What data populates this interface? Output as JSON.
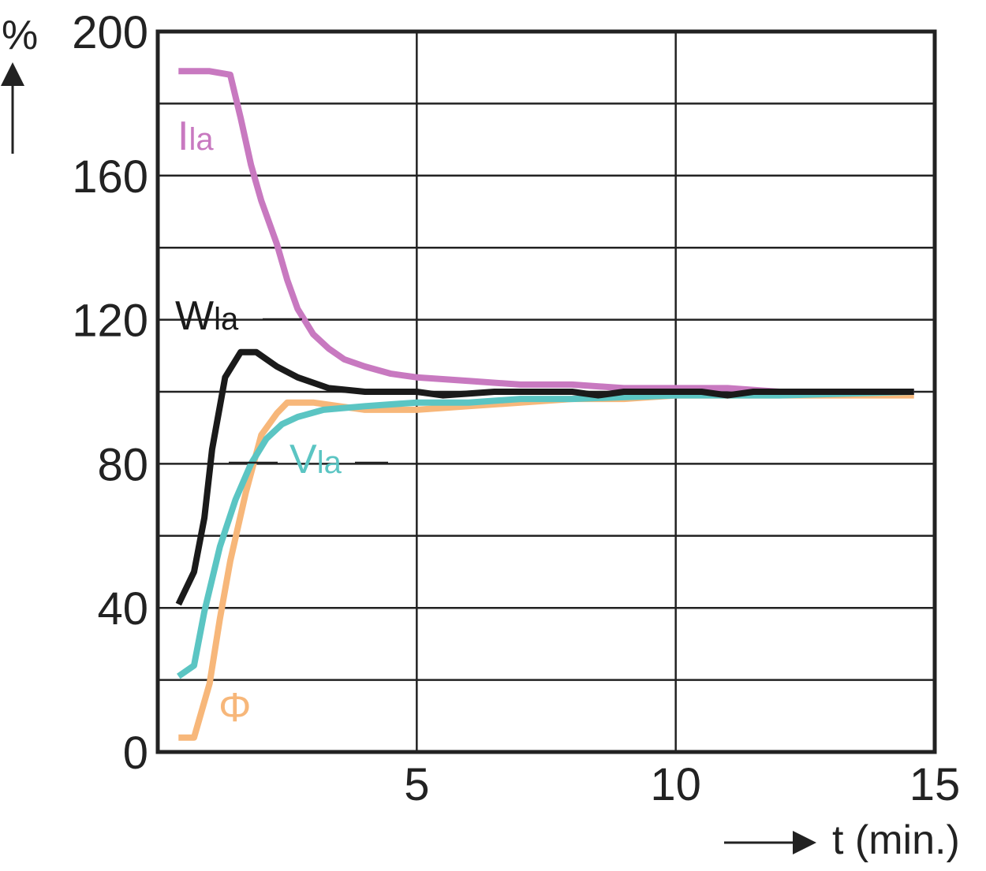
{
  "chart_data": {
    "type": "line",
    "title": "",
    "xlabel": "t (min.)",
    "ylabel": "%",
    "xlim": [
      0,
      15
    ],
    "ylim": [
      0,
      200
    ],
    "x_ticks": [
      5,
      10,
      15
    ],
    "y_ticks": [
      0,
      40,
      80,
      120,
      160,
      200
    ],
    "grid": true,
    "series": [
      {
        "name": "Ila",
        "label_main": "I",
        "label_sub": "la",
        "color": "#c879c0",
        "points": [
          [
            0.4,
            189
          ],
          [
            1.0,
            189
          ],
          [
            1.4,
            188
          ],
          [
            1.6,
            176
          ],
          [
            1.8,
            163
          ],
          [
            2.0,
            153
          ],
          [
            2.3,
            141
          ],
          [
            2.5,
            131
          ],
          [
            2.7,
            123
          ],
          [
            3.0,
            116
          ],
          [
            3.3,
            112
          ],
          [
            3.6,
            109
          ],
          [
            4.0,
            107
          ],
          [
            4.5,
            105
          ],
          [
            5.0,
            104
          ],
          [
            6.0,
            103
          ],
          [
            7.0,
            102
          ],
          [
            8.0,
            102
          ],
          [
            9.0,
            101
          ],
          [
            10.0,
            101
          ],
          [
            11.0,
            101
          ],
          [
            12.0,
            100
          ],
          [
            13.0,
            100
          ],
          [
            14.6,
            100
          ]
        ]
      },
      {
        "name": "Wla",
        "label_main": "W",
        "label_sub": "la",
        "color": "#1a1a1a",
        "points": [
          [
            0.4,
            41
          ],
          [
            0.7,
            50
          ],
          [
            0.9,
            65
          ],
          [
            1.05,
            84
          ],
          [
            1.3,
            104
          ],
          [
            1.6,
            111
          ],
          [
            1.9,
            111
          ],
          [
            2.3,
            107
          ],
          [
            2.7,
            104
          ],
          [
            3.3,
            101
          ],
          [
            4.0,
            100
          ],
          [
            5.0,
            100
          ],
          [
            5.5,
            99
          ],
          [
            6.5,
            100
          ],
          [
            8.0,
            100
          ],
          [
            8.5,
            99
          ],
          [
            9.0,
            100
          ],
          [
            10.0,
            100
          ],
          [
            10.5,
            100
          ],
          [
            11.0,
            99
          ],
          [
            11.5,
            100
          ],
          [
            12.5,
            100
          ],
          [
            14.6,
            100
          ]
        ]
      },
      {
        "name": "Vla",
        "label_main": "V",
        "label_sub": "la",
        "color": "#5bc5c3",
        "points": [
          [
            0.4,
            21
          ],
          [
            0.7,
            24
          ],
          [
            0.9,
            39
          ],
          [
            1.2,
            57
          ],
          [
            1.5,
            70
          ],
          [
            1.8,
            80
          ],
          [
            2.1,
            87
          ],
          [
            2.4,
            91
          ],
          [
            2.7,
            93
          ],
          [
            3.2,
            95
          ],
          [
            4.0,
            96
          ],
          [
            5.0,
            97
          ],
          [
            6.0,
            97
          ],
          [
            7.0,
            98
          ],
          [
            8.0,
            98
          ],
          [
            10.0,
            99
          ],
          [
            12.0,
            99
          ],
          [
            14.6,
            100
          ]
        ]
      },
      {
        "name": "Φ",
        "label_main": "Φ",
        "label_sub": "",
        "color": "#f7b77a",
        "points": [
          [
            0.4,
            4
          ],
          [
            0.7,
            4
          ],
          [
            1.0,
            19
          ],
          [
            1.2,
            37
          ],
          [
            1.4,
            53
          ],
          [
            1.7,
            72
          ],
          [
            2.0,
            88
          ],
          [
            2.3,
            94
          ],
          [
            2.5,
            97
          ],
          [
            3.0,
            97
          ],
          [
            3.5,
            96
          ],
          [
            4.0,
            95
          ],
          [
            5.0,
            95
          ],
          [
            6.0,
            96
          ],
          [
            7.0,
            97
          ],
          [
            8.0,
            98
          ],
          [
            9.0,
            98
          ],
          [
            10.0,
            99
          ],
          [
            11.0,
            99
          ],
          [
            12.0,
            99
          ],
          [
            13.0,
            99
          ],
          [
            14.6,
            99
          ]
        ]
      }
    ]
  }
}
